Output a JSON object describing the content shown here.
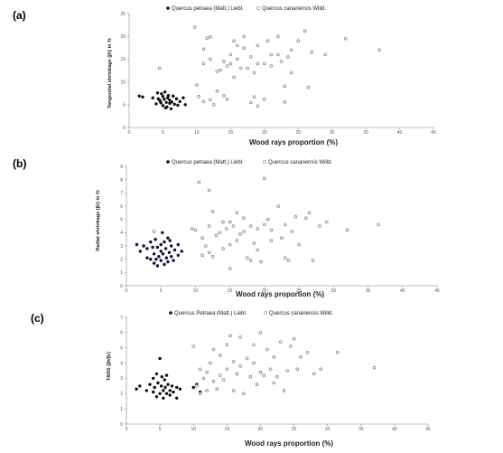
{
  "chart_data": [
    {
      "type": "scatter",
      "panel": "(a)",
      "xlabel": "Wood rays proportion (%)",
      "ylabel": "Tangential shrinkage (βt) in %",
      "xlim": [
        0,
        45
      ],
      "ylim": [
        0,
        25
      ],
      "xticks": [
        "0",
        "5",
        "10",
        "15",
        "20",
        "25",
        "30",
        "35",
        "40",
        "45"
      ],
      "yticks": [
        "0",
        "5",
        "10",
        "15",
        "20",
        "25"
      ],
      "series": [
        {
          "name": "Quercus petraea (Matt.) Liebl.",
          "marker": "filled-dark",
          "color": "#111111",
          "points": [
            [
              1.5,
              6.9
            ],
            [
              2,
              6.7
            ],
            [
              3.5,
              6.5
            ],
            [
              4,
              5.2
            ],
            [
              4.2,
              7.6
            ],
            [
              4.5,
              6.0
            ],
            [
              4.6,
              5.8
            ],
            [
              4.8,
              7.4
            ],
            [
              5,
              6.8
            ],
            [
              5,
              4.8
            ],
            [
              5.2,
              6.2
            ],
            [
              5.3,
              7.8
            ],
            [
              5.5,
              5.5
            ],
            [
              5.6,
              4.5
            ],
            [
              5.7,
              6.5
            ],
            [
              5.8,
              7.0
            ],
            [
              6,
              5.3
            ],
            [
              6,
              6.0
            ],
            [
              6.2,
              4.1
            ],
            [
              6.3,
              5.6
            ],
            [
              6.5,
              6.9
            ],
            [
              6.7,
              5.1
            ],
            [
              7,
              6.3
            ],
            [
              7.2,
              4.9
            ],
            [
              7.5,
              5.7
            ],
            [
              8,
              6.5
            ],
            [
              8.3,
              5.0
            ],
            [
              4.3,
              6.3
            ],
            [
              4.7,
              5.4
            ],
            [
              5.4,
              4.3
            ]
          ]
        },
        {
          "name": "Quercus canariensis Willd.",
          "marker": "hollow-gray",
          "color": "#888888",
          "points": [
            [
              4.5,
              13
            ],
            [
              9.7,
              22
            ],
            [
              10,
              9.3
            ],
            [
              10.3,
              6.8
            ],
            [
              11,
              5.7
            ],
            [
              11,
              14
            ],
            [
              11,
              17.2
            ],
            [
              11.5,
              19.6
            ],
            [
              12,
              19.9
            ],
            [
              12,
              6.1
            ],
            [
              12,
              15
            ],
            [
              12.5,
              5
            ],
            [
              13,
              12.3
            ],
            [
              13,
              8
            ],
            [
              13.5,
              12.6
            ],
            [
              14,
              7
            ],
            [
              14,
              14.5
            ],
            [
              14.5,
              6.2
            ],
            [
              14.5,
              13.5
            ],
            [
              15,
              16
            ],
            [
              15,
              14
            ],
            [
              15.5,
              19
            ],
            [
              15.5,
              11
            ],
            [
              16,
              15
            ],
            [
              16,
              18
            ],
            [
              16.5,
              13
            ],
            [
              17,
              20
            ],
            [
              17,
              17.4
            ],
            [
              17.5,
              13
            ],
            [
              18,
              5.5
            ],
            [
              18,
              15.5
            ],
            [
              18.5,
              6.7
            ],
            [
              18.5,
              12
            ],
            [
              19,
              4.7
            ],
            [
              19,
              18
            ],
            [
              19,
              14
            ],
            [
              20,
              6.2
            ],
            [
              20,
              14
            ],
            [
              20.5,
              19
            ],
            [
              21,
              16
            ],
            [
              21,
              13.5
            ],
            [
              22,
              16
            ],
            [
              22,
              20
            ],
            [
              22.5,
              14.5
            ],
            [
              23,
              9
            ],
            [
              23,
              5.6
            ],
            [
              23.5,
              15.5
            ],
            [
              24,
              12
            ],
            [
              24,
              17
            ],
            [
              25,
              19
            ],
            [
              26,
              21.2
            ],
            [
              26.5,
              8.8
            ],
            [
              27,
              16.5
            ],
            [
              29,
              16
            ],
            [
              32,
              19.5
            ],
            [
              37,
              17
            ]
          ]
        }
      ]
    },
    {
      "type": "scatter",
      "panel": "(b)",
      "xlabel": "Wood rays proportion (%)",
      "ylabel": "Radial shrinkage (βr) in %",
      "xlim": [
        0,
        45
      ],
      "ylim": [
        0,
        9
      ],
      "xticks": [
        "0",
        "5",
        "10",
        "15",
        "20",
        "25",
        "30",
        "35",
        "40",
        "45"
      ],
      "yticks": [
        "0",
        "1",
        "2",
        "3",
        "4",
        "5",
        "6",
        "7",
        "8",
        "9"
      ],
      "series": [
        {
          "name": "Quercus petraea (Matt.) Liebl.",
          "marker": "filled-dark",
          "color": "#0d0d3a",
          "points": [
            [
              1.5,
              3.1
            ],
            [
              2,
              2.6
            ],
            [
              2.5,
              3.0
            ],
            [
              3,
              2.1
            ],
            [
              3,
              2.8
            ],
            [
              3.5,
              3.3
            ],
            [
              3.5,
              2.0
            ],
            [
              4,
              2.4
            ],
            [
              4,
              1.7
            ],
            [
              4.2,
              3.5
            ],
            [
              4.5,
              2.9
            ],
            [
              4.5,
              1.5
            ],
            [
              4.7,
              2.2
            ],
            [
              5,
              3.1
            ],
            [
              5,
              2.6
            ],
            [
              5,
              1.9
            ],
            [
              5.2,
              4.0
            ],
            [
              5.3,
              2.4
            ],
            [
              5.5,
              3.3
            ],
            [
              5.5,
              1.6
            ],
            [
              5.7,
              2.8
            ],
            [
              5.8,
              2.1
            ],
            [
              6,
              3.6
            ],
            [
              6,
              1.8
            ],
            [
              6.2,
              2.5
            ],
            [
              6.5,
              3.0
            ],
            [
              6.5,
              2.2
            ],
            [
              6.8,
              1.9
            ],
            [
              7,
              2.7
            ],
            [
              7.5,
              3.1
            ],
            [
              7.5,
              2.3
            ],
            [
              8,
              2.6
            ],
            [
              4.3,
              2.0
            ],
            [
              3.8,
              2.9
            ],
            [
              6.3,
              3.4
            ]
          ]
        },
        {
          "name": "Quercus canariensis Willd.",
          "marker": "hollow-gray",
          "color": "#888888",
          "points": [
            [
              4,
              4.1
            ],
            [
              9.5,
              4.3
            ],
            [
              10,
              4.2
            ],
            [
              10.5,
              7.8
            ],
            [
              11,
              2.3
            ],
            [
              11,
              3.6
            ],
            [
              11.5,
              3.0
            ],
            [
              12,
              7.2
            ],
            [
              12,
              2.5
            ],
            [
              12,
              4.5
            ],
            [
              12.5,
              2.2
            ],
            [
              12.5,
              5.6
            ],
            [
              13,
              3.8
            ],
            [
              13.5,
              4.0
            ],
            [
              14,
              4.8
            ],
            [
              14,
              2.8
            ],
            [
              14.5,
              4.3
            ],
            [
              15,
              3.1
            ],
            [
              15,
              4.8
            ],
            [
              15,
              1.3
            ],
            [
              15.5,
              4.5
            ],
            [
              16,
              3.4
            ],
            [
              16,
              5.5
            ],
            [
              16.5,
              3.9
            ],
            [
              17,
              4.1
            ],
            [
              17,
              5.1
            ],
            [
              17.5,
              2.1
            ],
            [
              18,
              1.9
            ],
            [
              18,
              4.5
            ],
            [
              18.5,
              3.2
            ],
            [
              19,
              4.3
            ],
            [
              19,
              2.7
            ],
            [
              19.5,
              1.8
            ],
            [
              20,
              4.6
            ],
            [
              20,
              8.1
            ],
            [
              20.5,
              5.0
            ],
            [
              21,
              3.4
            ],
            [
              21,
              4.2
            ],
            [
              22,
              6.0
            ],
            [
              22.5,
              3.6
            ],
            [
              23,
              2.1
            ],
            [
              23,
              4.6
            ],
            [
              23.5,
              1.9
            ],
            [
              24,
              4.1
            ],
            [
              24.5,
              5.2
            ],
            [
              25,
              3.1
            ],
            [
              26,
              5.1
            ],
            [
              26.5,
              5.5
            ],
            [
              27,
              1.9
            ],
            [
              28,
              4.5
            ],
            [
              29,
              4.8
            ],
            [
              32,
              4.2
            ],
            [
              36.5,
              4.6
            ]
          ]
        }
      ]
    },
    {
      "type": "scatter",
      "panel": "(c)",
      "xlabel": "Wood rays proportion (%)",
      "ylabel": "TARS (βt/βr)",
      "xlim": [
        0,
        45
      ],
      "ylim": [
        0,
        7
      ],
      "xticks": [
        "0",
        "5",
        "10",
        "15",
        "20",
        "25",
        "30",
        "35",
        "40",
        "45"
      ],
      "yticks": [
        "0",
        "1",
        "2",
        "3",
        "4",
        "5",
        "6",
        "7"
      ],
      "series": [
        {
          "name": "Quercus Petraea (Matt.) Liebl.",
          "marker": "filled-dark",
          "color": "#111111",
          "points": [
            [
              1.5,
              2.3
            ],
            [
              2,
              2.5
            ],
            [
              3,
              2.2
            ],
            [
              3.5,
              2.6
            ],
            [
              4,
              2.1
            ],
            [
              4,
              3.0
            ],
            [
              4.2,
              2.4
            ],
            [
              4.5,
              3.3
            ],
            [
              4.5,
              1.8
            ],
            [
              4.7,
              2.7
            ],
            [
              5,
              2.0
            ],
            [
              5,
              4.3
            ],
            [
              5.2,
              2.5
            ],
            [
              5.3,
              3.1
            ],
            [
              5.5,
              2.2
            ],
            [
              5.5,
              1.7
            ],
            [
              5.7,
              2.9
            ],
            [
              5.8,
              2.4
            ],
            [
              6,
              2.0
            ],
            [
              6,
              3.2
            ],
            [
              6.2,
              2.6
            ],
            [
              6.5,
              2.2
            ],
            [
              6.5,
              1.9
            ],
            [
              6.8,
              2.5
            ],
            [
              7,
              2.1
            ],
            [
              7.5,
              1.7
            ],
            [
              7.5,
              2.4
            ],
            [
              8,
              2.3
            ],
            [
              10,
              2.4
            ],
            [
              10.5,
              2.6
            ],
            [
              11,
              2.1
            ]
          ]
        },
        {
          "name": "Quercus canariensis Willd.",
          "marker": "hollow-gray",
          "color": "#888888",
          "points": [
            [
              10,
              5.1
            ],
            [
              10.5,
              2.5
            ],
            [
              11,
              3.6
            ],
            [
              11,
              2.0
            ],
            [
              11.5,
              3.0
            ],
            [
              12,
              3.4
            ],
            [
              12,
              2.2
            ],
            [
              12.5,
              4.0
            ],
            [
              13,
              2.8
            ],
            [
              13,
              4.9
            ],
            [
              13.5,
              2.3
            ],
            [
              14,
              3.2
            ],
            [
              14,
              4.5
            ],
            [
              14.5,
              2.9
            ],
            [
              15,
              5.2
            ],
            [
              15,
              3.6
            ],
            [
              15.5,
              5.8
            ],
            [
              16,
              2.2
            ],
            [
              16,
              4.1
            ],
            [
              16.5,
              3.3
            ],
            [
              17,
              3.8
            ],
            [
              17,
              5.7
            ],
            [
              17.5,
              2.0
            ],
            [
              18,
              4.3
            ],
            [
              18.5,
              3.1
            ],
            [
              19,
              4.0
            ],
            [
              19,
              5.2
            ],
            [
              19.5,
              2.6
            ],
            [
              20,
              3.4
            ],
            [
              20,
              6.0
            ],
            [
              20.5,
              3.2
            ],
            [
              21,
              4.9
            ],
            [
              21.5,
              3.6
            ],
            [
              22,
              2.7
            ],
            [
              22,
              4.4
            ],
            [
              22.5,
              3.1
            ],
            [
              23,
              5.4
            ],
            [
              23.5,
              2.2
            ],
            [
              24,
              3.5
            ],
            [
              24.5,
              5.1
            ],
            [
              25,
              5.6
            ],
            [
              25.5,
              3.6
            ],
            [
              26,
              4.4
            ],
            [
              27,
              4.7
            ],
            [
              28,
              3.3
            ],
            [
              29,
              3.6
            ],
            [
              31.5,
              4.7
            ],
            [
              37,
              3.7
            ]
          ]
        }
      ]
    }
  ]
}
